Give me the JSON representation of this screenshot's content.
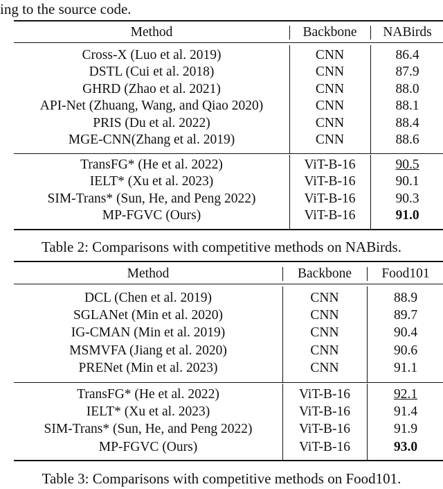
{
  "lead_text": "ing to the source code.",
  "tables": [
    {
      "headers": [
        "Method",
        "Backbone",
        "NABirds"
      ],
      "groups": [
        [
          [
            "Cross-X (Luo et al. 2019)",
            "CNN",
            "86.4"
          ],
          [
            "DSTL (Cui et al. 2018)",
            "CNN",
            "87.9"
          ],
          [
            "GHRD (Zhao et al. 2021)",
            "CNN",
            "88.0"
          ],
          [
            "API-Net (Zhuang, Wang, and Qiao 2020)",
            "CNN",
            "88.1"
          ],
          [
            "PRIS (Du et al. 2022)",
            "CNN",
            "88.4"
          ],
          [
            "MGE-CNN(Zhang et al. 2019)",
            "CNN",
            "88.6"
          ]
        ],
        [
          [
            "TransFG* (He et al. 2022)",
            "ViT-B-16",
            "90.5"
          ],
          [
            "IELT* (Xu et al. 2023)",
            "ViT-B-16",
            "90.1"
          ],
          [
            "SIM-Trans* (Sun, He, and Peng 2022)",
            "ViT-B-16",
            "90.3"
          ],
          [
            "MP-FGVC (Ours)",
            "ViT-B-16",
            "91.0"
          ]
        ]
      ],
      "caption": "Table 2: Comparisons with competitive methods on NABirds."
    },
    {
      "headers": [
        "Method",
        "Backbone",
        "Food101"
      ],
      "groups": [
        [
          [
            "DCL (Chen et al. 2019)",
            "CNN",
            "88.9"
          ],
          [
            "SGLANet (Min et al. 2020)",
            "CNN",
            "89.7"
          ],
          [
            "IG-CMAN (Min et al. 2019)",
            "CNN",
            "90.4"
          ],
          [
            "MSMVFA (Jiang et al. 2020)",
            "CNN",
            "90.6"
          ],
          [
            "PRENet (Min et al. 2023)",
            "CNN",
            "91.1"
          ]
        ],
        [
          [
            "TransFG* (He et al. 2022)",
            "ViT-B-16",
            "92.1"
          ],
          [
            "IELT* (Xu et al. 2023)",
            "ViT-B-16",
            "91.4"
          ],
          [
            "SIM-Trans* (Sun, He, and Peng 2022)",
            "ViT-B-16",
            "91.9"
          ],
          [
            "MP-FGVC (Ours)",
            "ViT-B-16",
            "93.0"
          ]
        ]
      ],
      "caption": "Table 3: Comparisons with competitive methods on Food101."
    }
  ],
  "emphasis": {
    "underlined": "second best",
    "bold": "best"
  }
}
